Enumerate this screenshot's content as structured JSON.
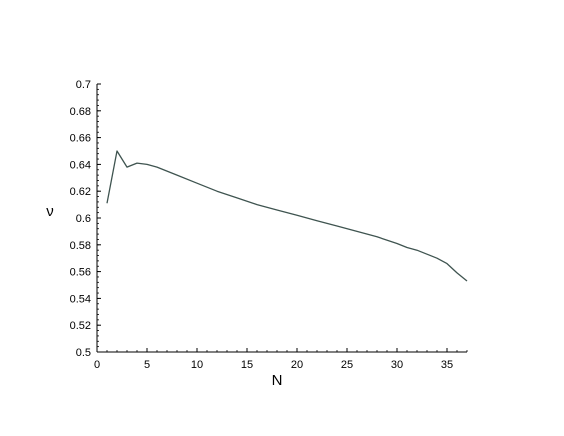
{
  "chart_data": {
    "type": "line",
    "xlabel": "N",
    "ylabel": "ν",
    "xlim": [
      0,
      37
    ],
    "ylim": [
      0.5,
      0.7
    ],
    "x_ticks": [
      0,
      5,
      10,
      15,
      20,
      25,
      30,
      35
    ],
    "x_tick_labels": [
      "0",
      "5",
      "10",
      "15",
      "20",
      "25",
      "30",
      "35"
    ],
    "y_ticks": [
      0.5,
      0.52,
      0.54,
      0.56,
      0.58,
      0.6,
      0.62,
      0.64,
      0.66,
      0.68,
      0.7
    ],
    "y_tick_labels": [
      "0.5",
      "0.52",
      "0.54",
      "0.56",
      "0.58",
      "0.6",
      "0.62",
      "0.64",
      "0.66",
      "0.68",
      "0.7"
    ],
    "grid": false,
    "line_color": "#3f5450",
    "series": [
      {
        "x": [
          1,
          2,
          3,
          4,
          5,
          6,
          7,
          8,
          10,
          12,
          14,
          16,
          18,
          20,
          22,
          24,
          26,
          28,
          30,
          31,
          32,
          33,
          34,
          35,
          36,
          37
        ],
        "y": [
          0.611,
          0.65,
          0.638,
          0.641,
          0.64,
          0.638,
          0.635,
          0.632,
          0.626,
          0.62,
          0.615,
          0.61,
          0.606,
          0.602,
          0.598,
          0.594,
          0.59,
          0.586,
          0.581,
          0.578,
          0.576,
          0.573,
          0.57,
          0.566,
          0.559,
          0.553
        ]
      }
    ]
  }
}
